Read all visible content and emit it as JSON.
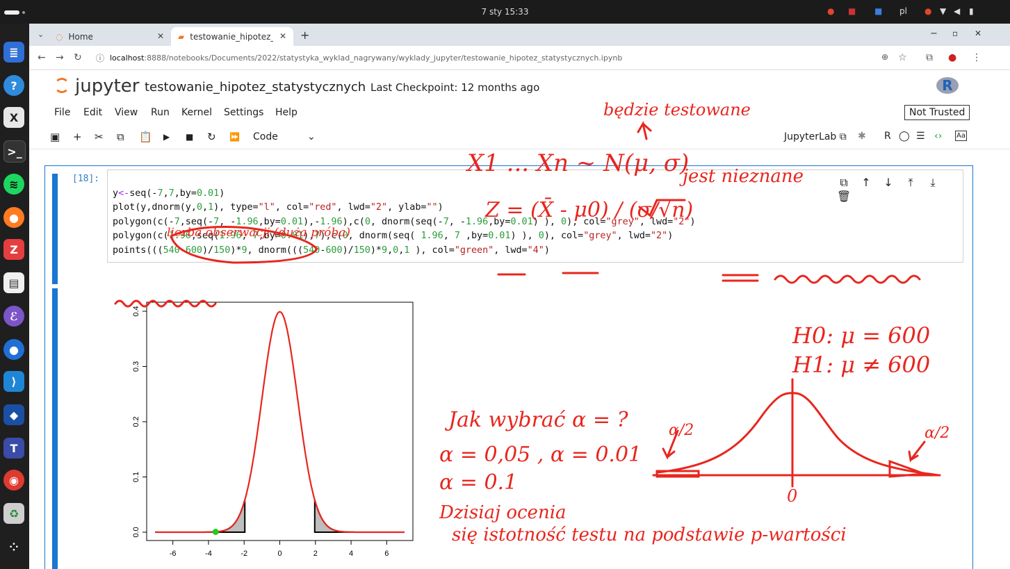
{
  "system": {
    "clock": "7 sty  15:33",
    "lang": "pl"
  },
  "browser": {
    "tabs": [
      {
        "title": "Home",
        "icon": "jupyter-icon"
      },
      {
        "title": "testowanie_hipotez_stat",
        "icon": "notebook-icon"
      }
    ],
    "url_host": "localhost",
    "url_path": ":8888/notebooks/Documents/2022/statystyka_wyklad_nagrywany/wyklady_jupyter/testowanie_hipotez_statystycznych.ipynb"
  },
  "jupyter": {
    "logo_text": "jupyter",
    "notebook_name": "testowanie_hipotez_statystycznych",
    "checkpoint": "Last Checkpoint: 12 months ago",
    "kernel_logo": "R",
    "menu": [
      "File",
      "Edit",
      "View",
      "Run",
      "Kernel",
      "Settings",
      "Help"
    ],
    "not_trusted": "Not Trusted",
    "cell_type": "Code",
    "jupyterlab_label": "JupyterLab",
    "kernel_name": "R"
  },
  "cell": {
    "prompt": "[18]:",
    "code_lines": [
      "y<-seq(-7,7,by=0.01)",
      "plot(y,dnorm(y,0,1), type=\"l\", col=\"red\", lwd=\"2\", ylab=\"\")",
      "polygon(c(-7,seq(-7, -1.96,by=0.01),-1.96),c(0, dnorm(seq(-7, -1.96,by=0.01) ), 0), col=\"grey\", lwd=\"2\")",
      "polygon(c(1.96,seq(1.96, 7,by=0.01),7),c(0, dnorm(seq( 1.96, 7 ,by=0.01) ), 0), col=\"grey\", lwd=\"2\")",
      "points(((540-600)/150)*9, dnorm(((540-600)/150)*9,0,1 ), col=\"green\", lwd=\"4\")"
    ]
  },
  "chart_data": {
    "type": "line",
    "x_ticks": [
      "-6",
      "-4",
      "-2",
      "0",
      "2",
      "4",
      "6"
    ],
    "y_ticks": [
      "0.0",
      "0.1",
      "0.2",
      "0.3",
      "0.4"
    ],
    "xlim": [
      -7,
      7
    ],
    "ylim": [
      0,
      0.4
    ],
    "series": [
      {
        "function": "dnorm(x,0,1)",
        "color": "#e8261e"
      }
    ],
    "shaded_tails": [
      [
        -7,
        -1.96
      ],
      [
        1.96,
        7
      ]
    ],
    "point": {
      "x": -3.6,
      "y": 0.0006,
      "color": "#22cc22"
    }
  },
  "annotations": {
    "handwriting": [
      "będzie testowane",
      "X1 ... Xn ~ N(μ, σ)",
      "jest nieznane",
      "Z = (X̄ - μ0) / (σ/√n)",
      "liczba obserwacji (duża próba)",
      "H0: μ = 600",
      "H1: μ ≠ 600",
      "Jak wybrać α = ?",
      "α = 0,05 , α = 0.01",
      "α = 0.1",
      "Dzisiaj ocenia się istotność testu na podstawie p-wartości",
      "α/2",
      "α/2",
      "0"
    ],
    "ink_color": "#e8261e"
  }
}
